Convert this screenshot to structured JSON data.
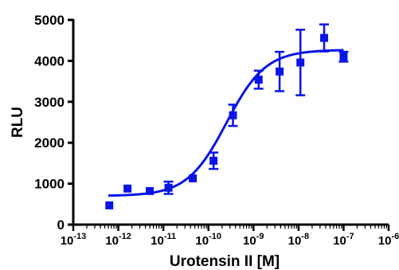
{
  "chart_data": {
    "type": "scatter",
    "title": "",
    "xlabel": "Urotensin II [M]",
    "ylabel": "RLU",
    "x_scale": "log",
    "xlim": [
      1e-13,
      1e-06
    ],
    "ylim": [
      0,
      5000
    ],
    "y_ticks": [
      "0",
      "1000",
      "2000",
      "3000",
      "4000",
      "5000"
    ],
    "x_ticks": [
      {
        "base": "10",
        "exp": "-13"
      },
      {
        "base": "10",
        "exp": "-12"
      },
      {
        "base": "10",
        "exp": "-11"
      },
      {
        "base": "10",
        "exp": "-10"
      },
      {
        "base": "10",
        "exp": "-9"
      },
      {
        "base": "10",
        "exp": "-8"
      },
      {
        "base": "10",
        "exp": "-7"
      },
      {
        "base": "10",
        "exp": "-6"
      }
    ],
    "grid": false,
    "legend": "none",
    "color": "#0a14e6",
    "series": [
      {
        "marker": "square",
        "x": [
          6.3e-13,
          1.6e-12,
          5e-12,
          1.3e-11,
          4.5e-11,
          1.3e-10,
          3.5e-10,
          1.3e-09,
          3.8e-09,
          1.1e-08,
          3.7e-08,
          1e-07
        ],
        "y": [
          470,
          880,
          820,
          900,
          1130,
          1560,
          2670,
          3540,
          3740,
          3960,
          4560,
          4100
        ],
        "err": [
          0,
          0,
          0,
          150,
          0,
          200,
          260,
          220,
          480,
          800,
          330,
          120
        ]
      }
    ],
    "fit_curve": {
      "type": "sigmoidal dose-response",
      "bottom": 700,
      "top": 4270,
      "log_ec50": -9.6,
      "hill_slope": 1,
      "x_range": [
        6e-13,
        1e-07
      ]
    }
  }
}
